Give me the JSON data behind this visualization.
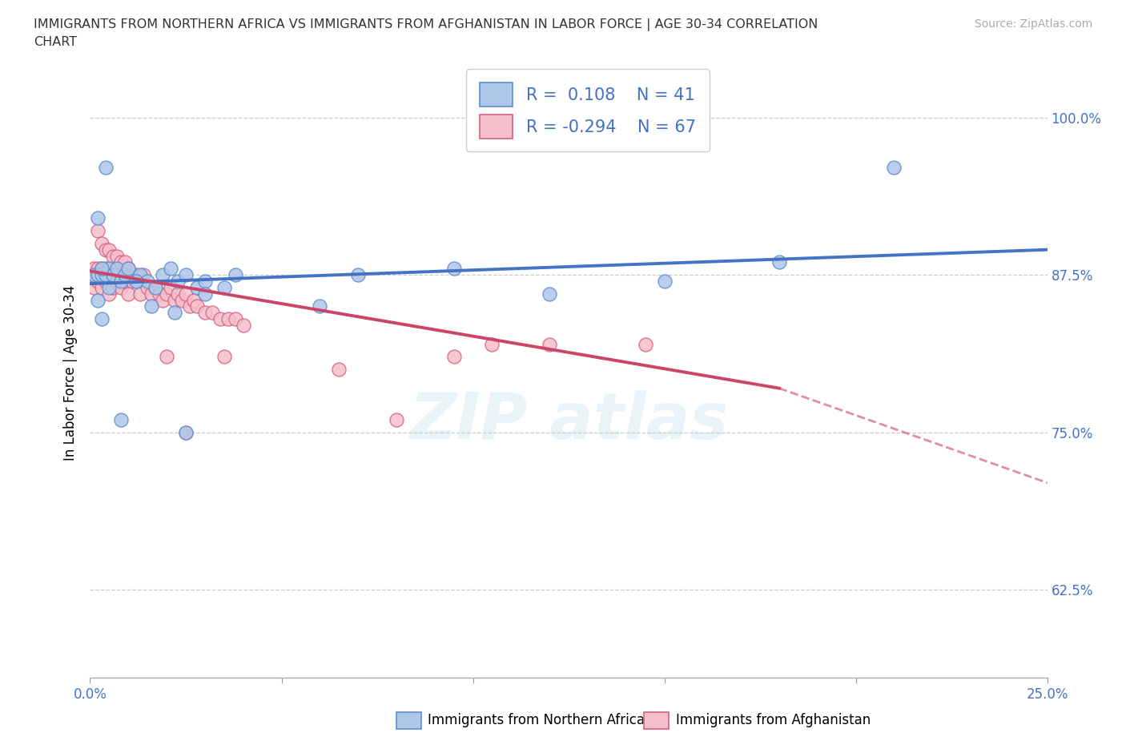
{
  "title_line1": "IMMIGRANTS FROM NORTHERN AFRICA VS IMMIGRANTS FROM AFGHANISTAN IN LABOR FORCE | AGE 30-34 CORRELATION",
  "title_line2": "CHART",
  "source_text": "Source: ZipAtlas.com",
  "ylabel": "In Labor Force | Age 30-34",
  "legend_label_1": "Immigrants from Northern Africa",
  "legend_label_2": "Immigrants from Afghanistan",
  "R1": 0.108,
  "N1": 41,
  "R2": -0.294,
  "N2": 67,
  "color1_fill": "#aec6e8",
  "color1_edge": "#5b8ecf",
  "color2_fill": "#f5bfcc",
  "color2_edge": "#d96080",
  "color1_line": "#4472c4",
  "color2_line": "#cc4466",
  "xlim": [
    0.0,
    0.25
  ],
  "ylim": [
    0.555,
    1.04
  ],
  "xticks": [
    0.0,
    0.05,
    0.1,
    0.15,
    0.2,
    0.25
  ],
  "xticklabels_visible": [
    "0.0%",
    "25.0%"
  ],
  "yticks": [
    0.625,
    0.75,
    0.875,
    1.0
  ],
  "yticklabels": [
    "62.5%",
    "75.0%",
    "87.5%",
    "100.0%"
  ],
  "blue_x": [
    0.001,
    0.002,
    0.003,
    0.004,
    0.005,
    0.006,
    0.007,
    0.008,
    0.009,
    0.01,
    0.012,
    0.013,
    0.015,
    0.017,
    0.019,
    0.021,
    0.023,
    0.025,
    0.028,
    0.03,
    0.035,
    0.038,
    0.06,
    0.07,
    0.095,
    0.12,
    0.15,
    0.18,
    0.21,
    0.002,
    0.004,
    0.003,
    0.002,
    0.005,
    0.003,
    0.016,
    0.022,
    0.03,
    0.012,
    0.008,
    0.025
  ],
  "blue_y": [
    0.875,
    0.875,
    0.875,
    0.875,
    0.88,
    0.875,
    0.88,
    0.87,
    0.875,
    0.88,
    0.87,
    0.875,
    0.87,
    0.865,
    0.875,
    0.88,
    0.87,
    0.875,
    0.865,
    0.87,
    0.865,
    0.875,
    0.85,
    0.875,
    0.88,
    0.86,
    0.87,
    0.885,
    0.96,
    0.92,
    0.96,
    0.88,
    0.855,
    0.865,
    0.84,
    0.85,
    0.845,
    0.86,
    0.87,
    0.76,
    0.75
  ],
  "pink_x": [
    0.001,
    0.001,
    0.001,
    0.002,
    0.002,
    0.002,
    0.003,
    0.003,
    0.003,
    0.004,
    0.004,
    0.004,
    0.005,
    0.005,
    0.005,
    0.006,
    0.006,
    0.007,
    0.007,
    0.008,
    0.008,
    0.009,
    0.009,
    0.01,
    0.01,
    0.011,
    0.012,
    0.013,
    0.014,
    0.015,
    0.016,
    0.017,
    0.018,
    0.019,
    0.02,
    0.021,
    0.022,
    0.023,
    0.024,
    0.025,
    0.026,
    0.027,
    0.028,
    0.03,
    0.032,
    0.034,
    0.036,
    0.038,
    0.04,
    0.002,
    0.003,
    0.004,
    0.005,
    0.006,
    0.007,
    0.008,
    0.009,
    0.01,
    0.035,
    0.065,
    0.095,
    0.12,
    0.145,
    0.105,
    0.08,
    0.02,
    0.025
  ],
  "pink_y": [
    0.875,
    0.88,
    0.865,
    0.875,
    0.87,
    0.88,
    0.875,
    0.865,
    0.88,
    0.875,
    0.87,
    0.88,
    0.875,
    0.86,
    0.875,
    0.875,
    0.865,
    0.875,
    0.87,
    0.875,
    0.865,
    0.875,
    0.87,
    0.875,
    0.86,
    0.87,
    0.875,
    0.86,
    0.875,
    0.865,
    0.86,
    0.865,
    0.86,
    0.855,
    0.86,
    0.865,
    0.855,
    0.86,
    0.855,
    0.86,
    0.85,
    0.855,
    0.85,
    0.845,
    0.845,
    0.84,
    0.84,
    0.84,
    0.835,
    0.91,
    0.9,
    0.895,
    0.895,
    0.89,
    0.89,
    0.885,
    0.885,
    0.88,
    0.81,
    0.8,
    0.81,
    0.82,
    0.82,
    0.82,
    0.76,
    0.81,
    0.75
  ]
}
